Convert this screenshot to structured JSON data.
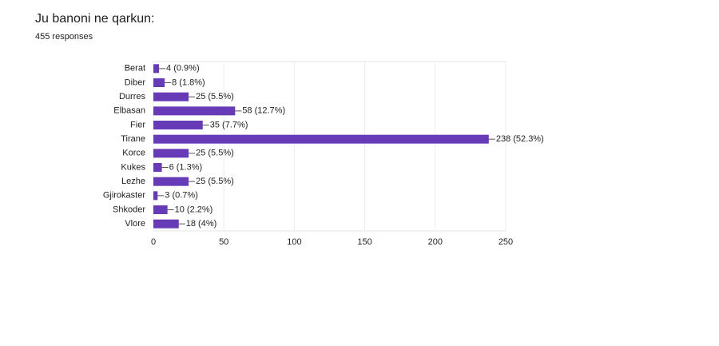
{
  "chart_data": {
    "type": "bar",
    "title": "Ju banoni ne qarkun:",
    "subtitle": "455 responses",
    "categories": [
      "Berat",
      "Diber",
      "Durres",
      "Elbasan",
      "Fier",
      "Tirane",
      "Korce",
      "Kukes",
      "Lezhe",
      "Gjirokaster",
      "Shkoder",
      "Vlore"
    ],
    "values": [
      4,
      8,
      25,
      58,
      35,
      238,
      25,
      6,
      25,
      3,
      10,
      18
    ],
    "value_labels": [
      "4 (0.9%)",
      "8 (1.8%)",
      "25 (5.5%)",
      "58 (12.7%)",
      "35 (7.7%)",
      "238 (52.3%)",
      "25 (5.5%)",
      "6 (1.3%)",
      "25 (5.5%)",
      "3 (0.7%)",
      "10 (2.2%)",
      "18 (4%)"
    ],
    "color": "#673ab7",
    "xlim": [
      0,
      250
    ],
    "xticks": [
      0,
      50,
      100,
      150,
      200,
      250
    ],
    "grid": true
  }
}
